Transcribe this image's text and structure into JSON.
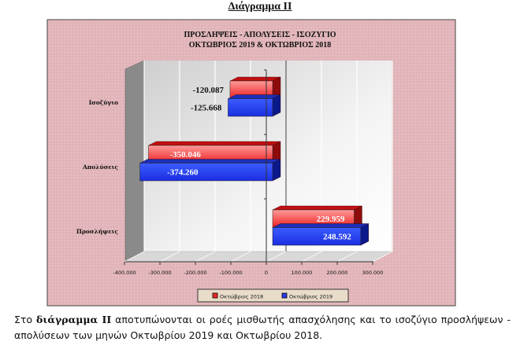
{
  "header": "Διάγραμμα ΙΙ",
  "chart_data": {
    "type": "bar",
    "orientation": "horizontal",
    "title": [
      "ΠΡΟΣΛΗΨΕΙΣ - ΑΠΟΛΥΣΕΙΣ - ΙΣΟΖΥΓΙΟ",
      "ΟΚΤΩΒΡΙΟΣ 2019 & ΟΚΤΩΒΡΙΟΣ 2018"
    ],
    "categories": [
      "Ισοζύγιο",
      "Απολύσεις",
      "Προσλήψεις"
    ],
    "series": [
      {
        "name": "Οκτώβριος 2018",
        "color": "#ee2a2a",
        "values": [
          -120087,
          -350046,
          229959
        ],
        "labels": [
          "-120.087",
          "-350.046",
          "229.959"
        ]
      },
      {
        "name": "Οκτώβριος 2019",
        "color": "#2a3cee",
        "values": [
          -125668,
          -374260,
          248592
        ],
        "labels": [
          "-125.668",
          "-374.260",
          "248.592"
        ]
      }
    ],
    "xlim": [
      -400000,
      300000
    ],
    "xticks": [
      -400000,
      -300000,
      -200000,
      -100000,
      0,
      100000,
      200000,
      300000
    ],
    "xtick_labels": [
      "-400.000",
      "-300.000",
      "-200.000",
      "-100.000",
      "0",
      "100.000",
      "200.000",
      "300.000"
    ],
    "grid": true,
    "legend": "bottom"
  },
  "paragraph": {
    "prefix": "Στο ",
    "bold": "διάγραμμα ΙΙ",
    "rest": " αποτυπώνονται οι ροές μισθωτής απασχόλησης και το ισοζύγιο προσλήψεων - απολύσεων των μηνών Οκτωβρίου 2019 και Οκτωβρίου 2018."
  }
}
